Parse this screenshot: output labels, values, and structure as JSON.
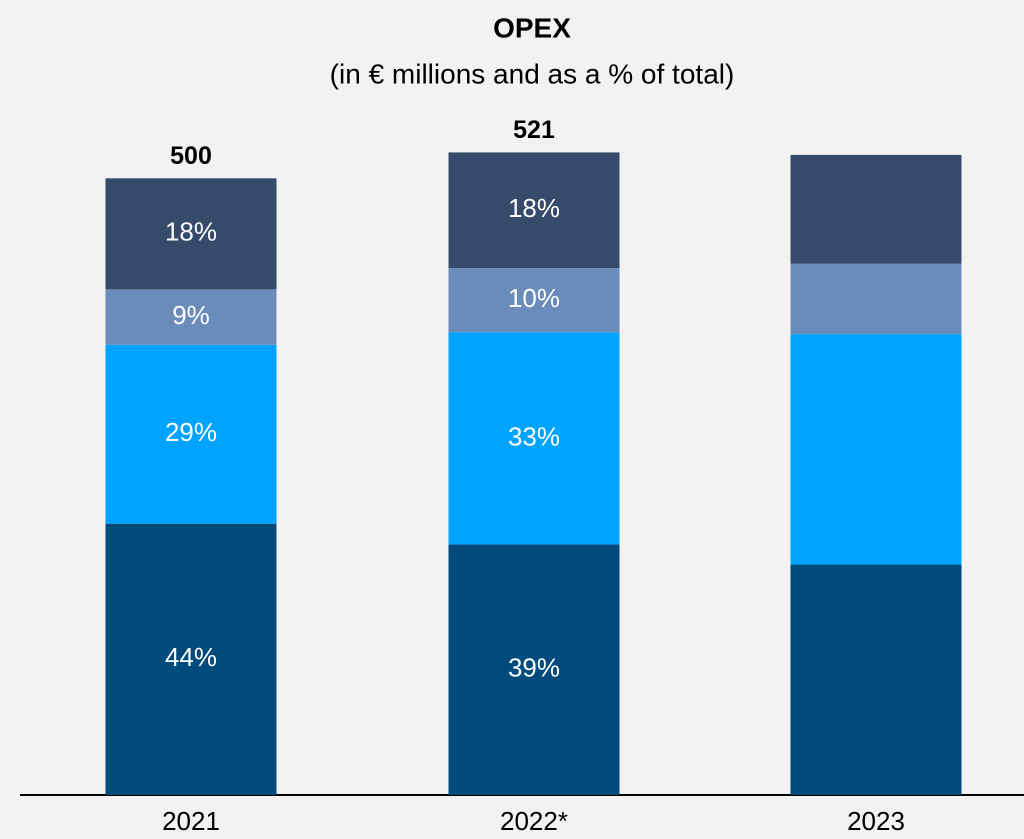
{
  "chart_data": {
    "type": "stacked_bar",
    "title": "OPEX",
    "subtitle": "(in € millions and as a % of total)",
    "categories": [
      "2021",
      "2022*",
      "2023"
    ],
    "totals": {
      "values": [
        500,
        521,
        519
      ],
      "value_labels": [
        "500",
        "521",
        null
      ]
    },
    "series": [
      {
        "color": "#004a7c",
        "values": [
          44,
          39,
          36
        ],
        "value_labels": [
          "44%",
          "39%",
          null
        ]
      },
      {
        "color": "#00a3ff",
        "values": [
          29,
          33,
          36
        ],
        "value_labels": [
          "29%",
          "33%",
          null
        ]
      },
      {
        "color": "#6a8cba",
        "values": [
          9,
          10,
          11
        ],
        "value_labels": [
          "9%",
          "10%",
          null
        ]
      },
      {
        "color": "#364a6b",
        "values": [
          18,
          18,
          17
        ],
        "value_labels": [
          "18%",
          "18%",
          null
        ]
      }
    ],
    "ylim": [
      0,
      540
    ]
  }
}
